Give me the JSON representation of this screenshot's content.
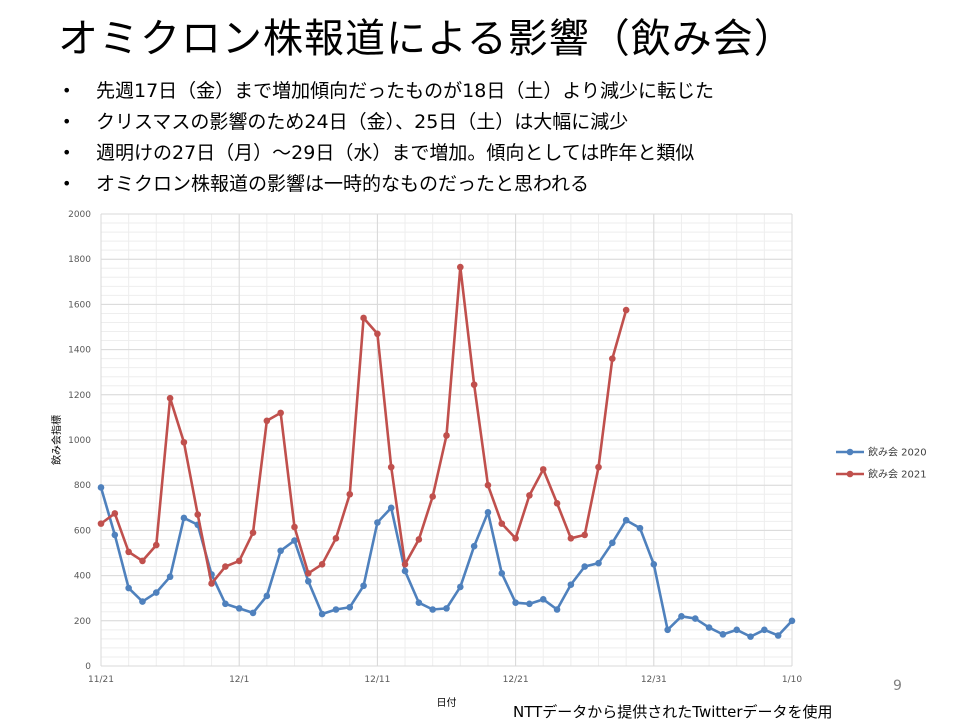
{
  "title": "オミクロン株報道による影響（飲み会）",
  "bullets": [
    "先週17日（金）まで増加傾向だったものが18日（土）より減少に転じた",
    "クリスマスの影響のため24日（金）、25日（土）は大幅に減少",
    "週明けの27日（月）～29日（水）まで増加。傾向としては昨年と類似",
    "オミクロン株報道の影響は一時的なものだったと思われる"
  ],
  "bullet_marker": "•",
  "page_number": "9",
  "source_note": "NTTデータから提供されたTwitterデータを使用",
  "chart_data": {
    "type": "line",
    "xlabel": "日付",
    "ylabel": "飲み会指標",
    "ylim": [
      0,
      2000
    ],
    "y_ticks": [
      "0",
      "200",
      "400",
      "600",
      "800",
      "1000",
      "1200",
      "1400",
      "1600",
      "1800",
      "2000"
    ],
    "x_start": "11/21",
    "x_tick_labels": [
      {
        "day": 0,
        "label": "11/21"
      },
      {
        "day": 10,
        "label": "12/1"
      },
      {
        "day": 20,
        "label": "12/11"
      },
      {
        "day": 30,
        "label": "12/21"
      },
      {
        "day": 40,
        "label": "12/31"
      },
      {
        "day": 50,
        "label": "1/10"
      }
    ],
    "grid": true,
    "legend_position": "right",
    "series": [
      {
        "name": "飲み会 2020",
        "color": "#4f81bd",
        "values": [
          790,
          580,
          345,
          285,
          325,
          395,
          655,
          625,
          405,
          275,
          255,
          235,
          310,
          510,
          555,
          375,
          230,
          250,
          260,
          355,
          635,
          700,
          420,
          280,
          250,
          255,
          350,
          530,
          680,
          410,
          280,
          275,
          295,
          250,
          360,
          440,
          455,
          545,
          645,
          610,
          450,
          160,
          220,
          210,
          170,
          140,
          160,
          130,
          160,
          135,
          200
        ]
      },
      {
        "name": "飲み会 2021",
        "color": "#c0504d",
        "values": [
          630,
          675,
          505,
          465,
          535,
          1185,
          990,
          670,
          365,
          440,
          465,
          590,
          1085,
          1120,
          615,
          410,
          450,
          565,
          760,
          1540,
          1470,
          880,
          450,
          560,
          750,
          1020,
          1765,
          1245,
          800,
          630,
          565,
          755,
          870,
          720,
          565,
          580,
          880,
          1360,
          1575
        ]
      }
    ]
  }
}
